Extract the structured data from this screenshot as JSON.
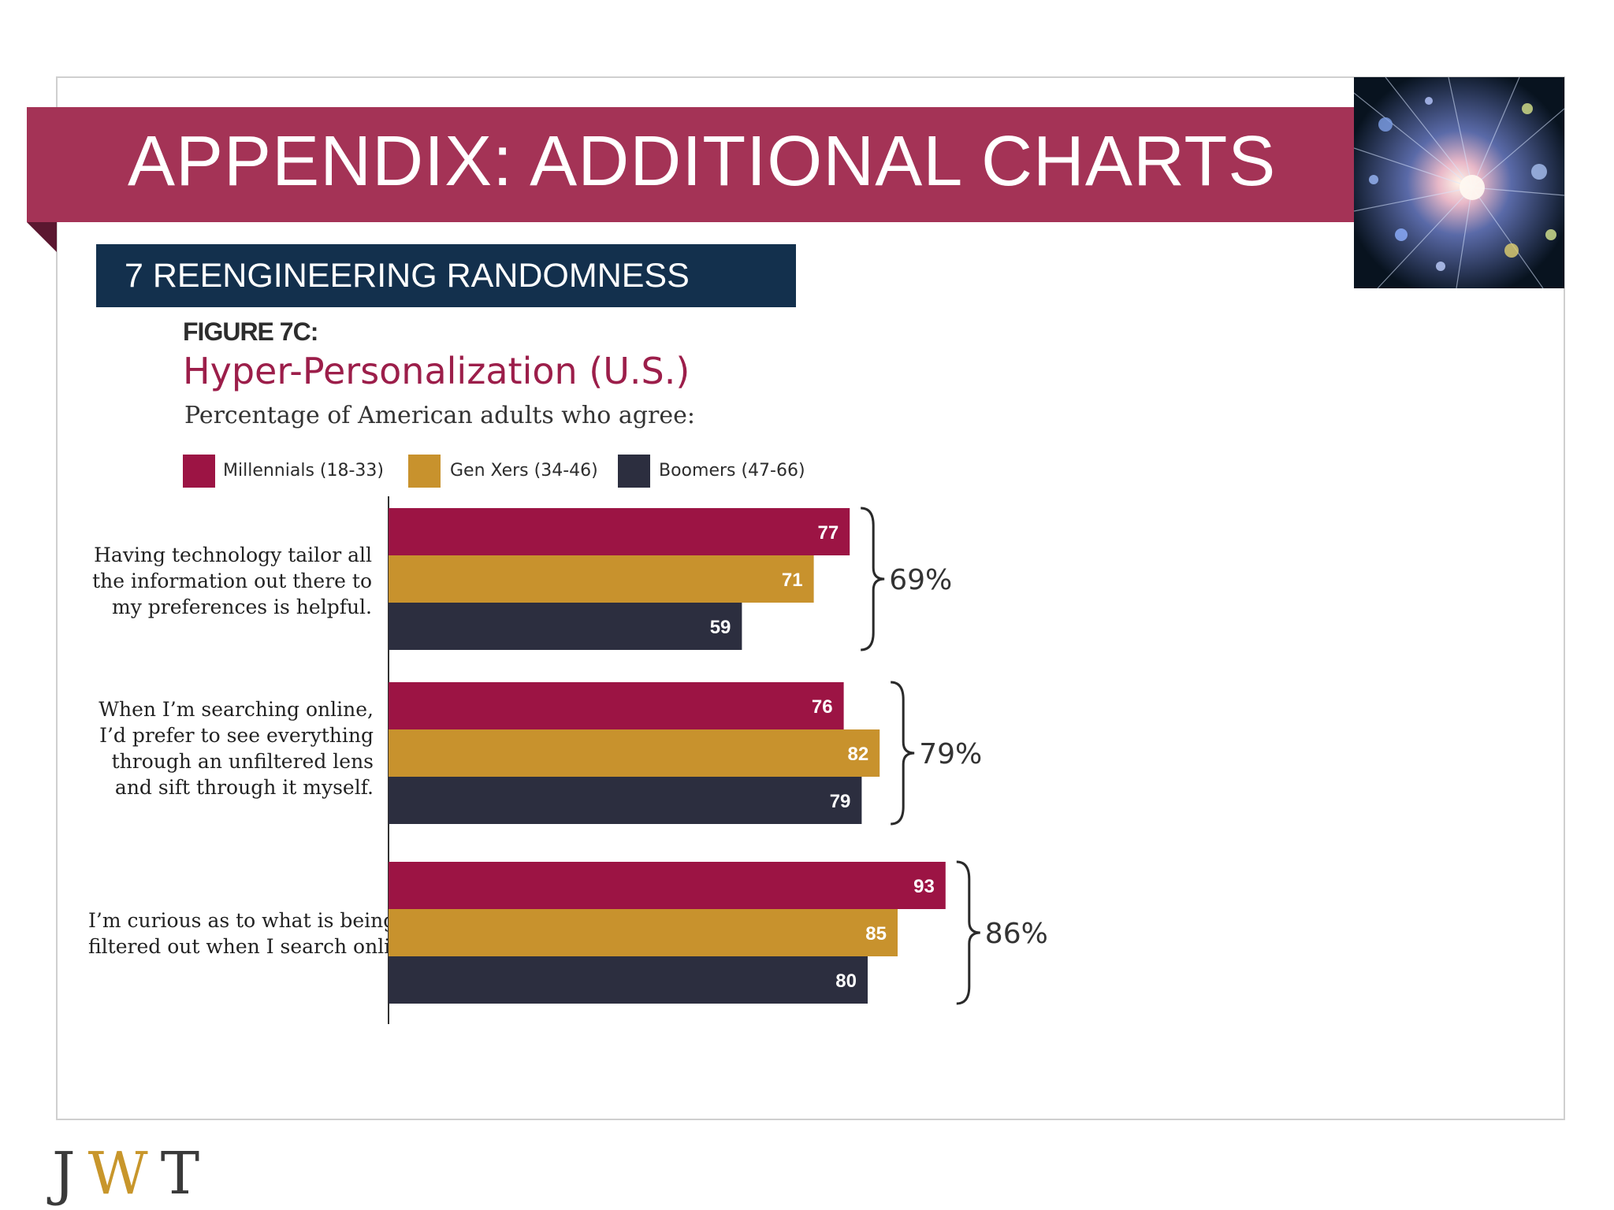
{
  "header": {
    "title": "APPENDIX: ADDITIONAL CHARTS",
    "section": "7  REENGINEERING RANDOMNESS"
  },
  "figure": {
    "label": "FIGURE 7C:",
    "title": "Hyper-Personalization (U.S.)",
    "subtitle": "Percentage of American adults who agree:"
  },
  "logo": {
    "letters": [
      "J",
      "W",
      "T"
    ],
    "colors": [
      "#3a3a3a",
      "#c8962b",
      "#3a3a3a"
    ]
  },
  "colors": {
    "millennials": "#9c1444",
    "genx": "#c8922d",
    "boomers": "#2c2e3f",
    "banner": "#a43356",
    "section": "#13304d"
  },
  "chart_data": {
    "type": "bar",
    "orientation": "horizontal",
    "categories": [
      [
        "Having technology tailor all",
        "the information out there to",
        "my preferences is helpful."
      ],
      [
        "When I’m searching online,",
        "I’d prefer to see everything",
        "through an unfiltered lens",
        "and sift through it myself."
      ],
      [
        "I’m curious as to what is being",
        "filtered out when I search online."
      ]
    ],
    "series": [
      {
        "name": "Millennials (18-33)",
        "values": [
          77,
          76,
          93
        ]
      },
      {
        "name": "Gen Xers (34-46)",
        "values": [
          71,
          82,
          85
        ]
      },
      {
        "name": "Boomers (47-66)",
        "values": [
          59,
          79,
          80
        ]
      }
    ],
    "totals": [
      "69%",
      "79%",
      "86%"
    ],
    "xlim": [
      0,
      100
    ],
    "grid": false,
    "legend_position": "top-left"
  }
}
